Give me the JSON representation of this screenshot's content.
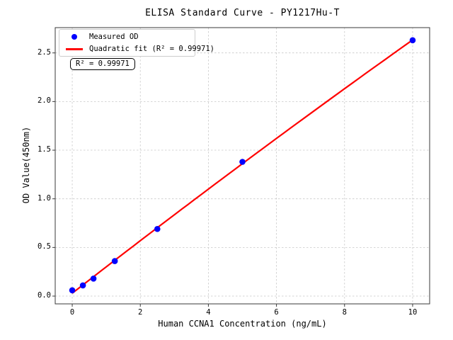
{
  "figure": {
    "background": "#ffffff"
  },
  "chart_data": {
    "type": "scatter",
    "title": "ELISA Standard Curve - PY1217Hu-T",
    "xlabel": "Human CCNA1 Concentration (ng/mL)",
    "ylabel": "OD Value(450nm)",
    "x": [
      0,
      0.313,
      0.625,
      1.25,
      2.5,
      5,
      10
    ],
    "y": [
      0.06,
      0.11,
      0.18,
      0.36,
      0.69,
      1.38,
      2.63
    ],
    "series": [
      {
        "name": "Measured OD",
        "type": "scatter",
        "marker": "circle",
        "color": "#0000ff"
      },
      {
        "name": "Quadratic fit (R² = 0.99971)",
        "type": "line",
        "fit": "quadratic",
        "color": "#ff0000",
        "x_range": [
          0,
          10
        ]
      }
    ],
    "r_squared": "0.99971",
    "annotation": "R² = 0.99971",
    "xlim": [
      -0.5,
      10.5
    ],
    "ylim": [
      -0.08,
      2.76
    ],
    "xticks": [
      0,
      2,
      4,
      6,
      8,
      10
    ],
    "xtick_labels": [
      "0",
      "2",
      "4",
      "6",
      "8",
      "10"
    ],
    "yticks": [
      0.0,
      0.5,
      1.0,
      1.5,
      2.0,
      2.5
    ],
    "ytick_labels": [
      "0.0",
      "0.5",
      "1.0",
      "1.5",
      "2.0",
      "2.5"
    ],
    "grid": true,
    "grid_style": "dashed",
    "legend_position": "upper left",
    "colors": {
      "point": "#0000ff",
      "fit_line": "#ff0000",
      "grid": "#c9c9c9",
      "spine": "#3a3a3a",
      "text": "#000000"
    }
  }
}
